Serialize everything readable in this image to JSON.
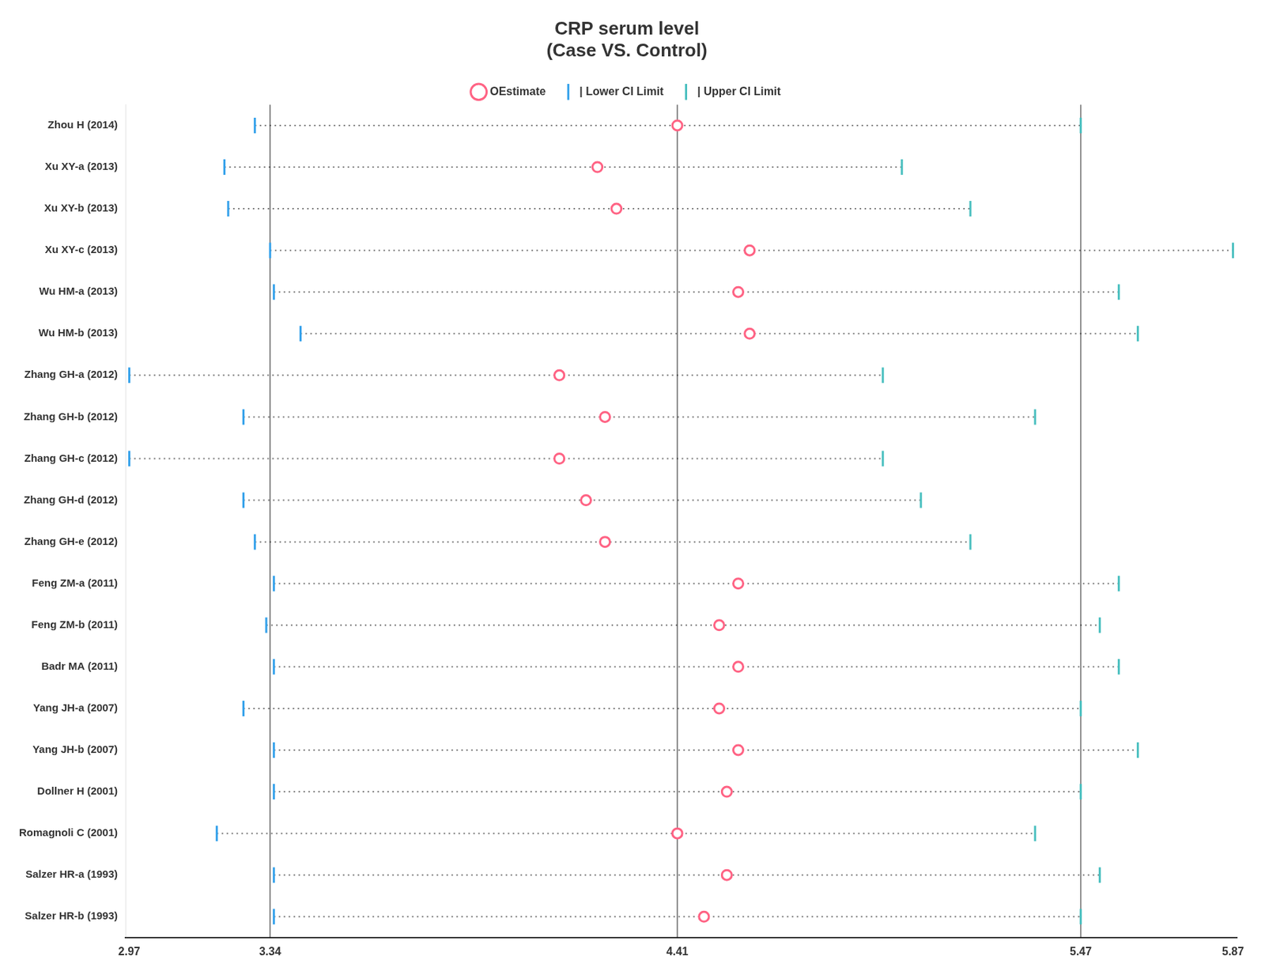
{
  "chart_data": {
    "type": "forest",
    "title": "CRP serum level",
    "subtitle": "(Case VS. Control)",
    "orientation": "horizontal",
    "categories": [
      "Zhou H (2014)",
      "Xu XY-a (2013)",
      "Xu XY-b (2013)",
      "Xu XY-c (2013)",
      "Wu HM-a (2013)",
      "Wu HM-b (2013)",
      "Zhang GH-a (2012)",
      "Zhang GH-b (2012)",
      "Zhang GH-c (2012)",
      "Zhang GH-d (2012)",
      "Zhang GH-e (2012)",
      "Feng ZM-a (2011)",
      "Feng ZM-b (2011)",
      "Badr MA (2011)",
      "Yang JH-a (2007)",
      "Yang JH-b (2007)",
      "Dollner H (2001)",
      "Romagnoli C (2001)",
      "Salzer HR-a (1993)",
      "Salzer HR-b (1993)"
    ],
    "series": [
      {
        "name": "| Lower CI Limit",
        "color": "#36a2eb",
        "marker": "vline",
        "values": [
          3.3,
          3.22,
          3.23,
          3.34,
          3.35,
          3.42,
          2.97,
          3.27,
          2.97,
          3.27,
          3.3,
          3.35,
          3.33,
          3.35,
          3.27,
          3.35,
          3.35,
          3.2,
          3.35,
          3.35
        ]
      },
      {
        "name": "OEstimate",
        "color": "#ff6384",
        "marker": "circle",
        "values": [
          4.41,
          4.2,
          4.25,
          4.6,
          4.57,
          4.6,
          4.1,
          4.22,
          4.1,
          4.17,
          4.22,
          4.57,
          4.52,
          4.57,
          4.52,
          4.57,
          4.54,
          4.41,
          4.54,
          4.48
        ]
      },
      {
        "name": "| Upper CI Limit",
        "color": "#4bc0c0",
        "marker": "vline",
        "values": [
          5.47,
          5.0,
          5.18,
          5.87,
          5.57,
          5.62,
          4.95,
          5.35,
          4.95,
          5.05,
          5.18,
          5.57,
          5.52,
          5.57,
          5.47,
          5.62,
          5.47,
          5.35,
          5.52,
          5.47
        ]
      }
    ],
    "vlines": [
      3.34,
      4.41,
      5.47
    ],
    "xlim": [
      2.96,
      5.88
    ],
    "xticks": [
      2.97,
      3.34,
      4.41,
      5.47,
      5.87
    ],
    "grid": false,
    "legend": "top"
  }
}
